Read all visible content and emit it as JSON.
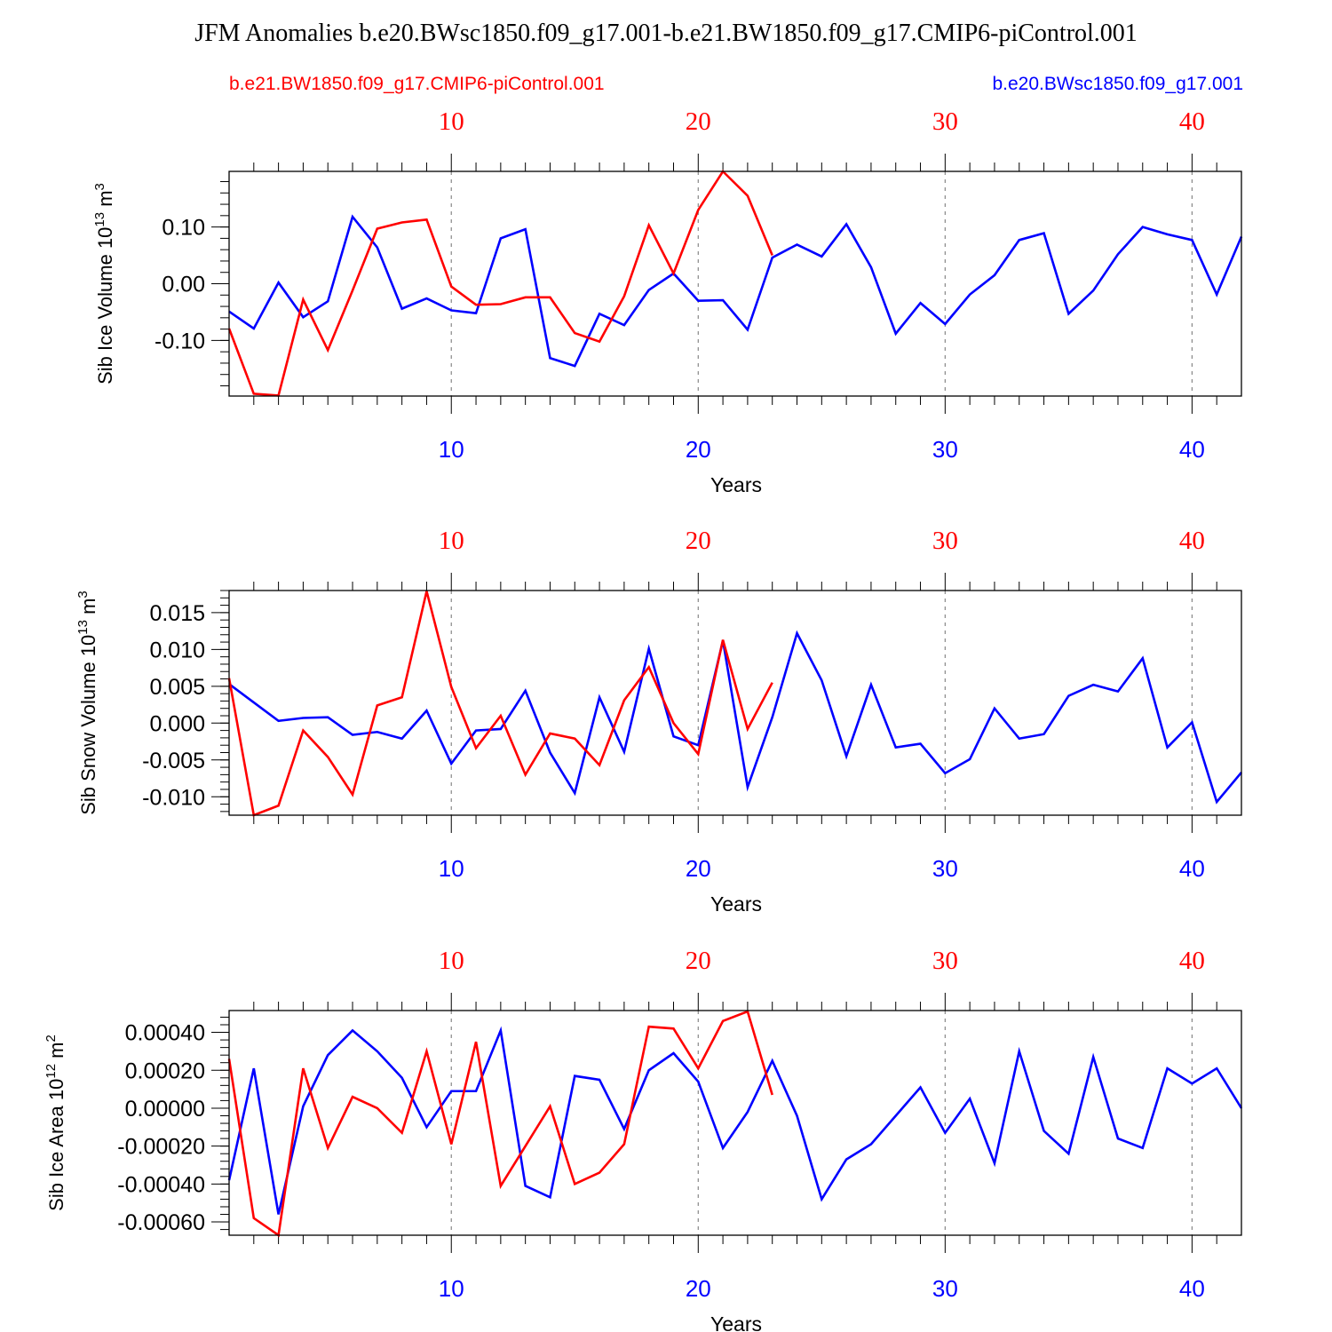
{
  "title": "JFM Anomalies b.e20.BWsc1850.f09_g17.001-b.e21.BW1850.f09_g17.CMIP6-piControl.001",
  "colors": {
    "red": "#ff0000",
    "blue": "#0000ff",
    "axis": "#000000",
    "grid": "#888888"
  },
  "legend": {
    "red_label": "b.e21.BW1850.f09_g17.CMIP6-piControl.001",
    "blue_label": "b.e20.BWsc1850.f09_g17.001"
  },
  "chart_data": [
    {
      "type": "line",
      "ylabel_main": "Sib Ice Volume 10",
      "ylabel_exp": "13",
      "ylabel_unit": " m",
      "ylabel_unit_exp": "3",
      "xlabel": "Years",
      "xlim": [
        1,
        42
      ],
      "ylim": [
        -0.198,
        0.198
      ],
      "xticks": [
        10,
        20,
        30,
        40
      ],
      "xtick_labels": [
        "10",
        "20",
        "30",
        "40"
      ],
      "yticks": [
        0.1,
        0.0,
        -0.1
      ],
      "ytick_labels": [
        "0.10",
        "0.00",
        "-0.10"
      ],
      "y_minor_step": 0.02,
      "series": [
        {
          "name": "b.e20.BWsc1850.f09_g17.001",
          "color": "blue",
          "x_start": 1,
          "values": [
            -0.049,
            -0.079,
            0.002,
            -0.059,
            -0.031,
            0.118,
            0.064,
            -0.044,
            -0.026,
            -0.047,
            -0.052,
            0.08,
            0.096,
            -0.131,
            -0.145,
            -0.053,
            -0.073,
            -0.011,
            0.018,
            -0.03,
            -0.029,
            -0.081,
            0.046,
            0.069,
            0.048,
            0.105,
            0.029,
            -0.088,
            -0.034,
            -0.071,
            -0.019,
            0.015,
            0.077,
            0.089,
            -0.053,
            -0.012,
            0.052,
            0.1,
            0.087,
            0.077,
            -0.019,
            0.083
          ]
        },
        {
          "name": "b.e21.BW1850.f09_g17.CMIP6-piControl.001",
          "color": "red",
          "x_start": 1,
          "values": [
            -0.079,
            -0.194,
            -0.197,
            -0.028,
            -0.117,
            -0.012,
            0.097,
            0.108,
            0.113,
            -0.005,
            -0.037,
            -0.036,
            -0.024,
            -0.024,
            -0.087,
            -0.102,
            -0.022,
            0.103,
            0.018,
            0.13,
            0.198,
            0.155,
            0.05
          ]
        }
      ]
    },
    {
      "type": "line",
      "ylabel_main": "Sib Snow Volume 10",
      "ylabel_exp": "13",
      "ylabel_unit": " m",
      "ylabel_unit_exp": "3",
      "xlabel": "Years",
      "xlim": [
        1,
        42
      ],
      "ylim": [
        -0.0125,
        0.018
      ],
      "xticks": [
        10,
        20,
        30,
        40
      ],
      "xtick_labels": [
        "10",
        "20",
        "30",
        "40"
      ],
      "yticks": [
        0.015,
        0.01,
        0.005,
        0.0,
        -0.005,
        -0.01
      ],
      "ytick_labels": [
        "0.015",
        "0.010",
        "0.005",
        "0.000",
        "-0.005",
        "-0.010"
      ],
      "y_minor_step": 0.001,
      "series": [
        {
          "name": "b.e20.BWsc1850.f09_g17.001",
          "color": "blue",
          "x_start": 1,
          "values": [
            0.0053,
            0.0028,
            0.0003,
            0.0007,
            0.0008,
            -0.0016,
            -0.0012,
            -0.0021,
            0.0017,
            -0.0055,
            -0.001,
            -0.0008,
            0.0044,
            -0.004,
            -0.0095,
            0.0035,
            -0.0039,
            0.0101,
            -0.0018,
            -0.003,
            0.0112,
            -0.0087,
            0.0008,
            0.0122,
            0.0058,
            -0.0045,
            0.0052,
            -0.0033,
            -0.0028,
            -0.0068,
            -0.0049,
            0.002,
            -0.0021,
            -0.0015,
            0.0037,
            0.0052,
            0.0043,
            0.0088,
            -0.0033,
            0.0001,
            -0.0107,
            -0.0067
          ]
        },
        {
          "name": "b.e21.BW1850.f09_g17.CMIP6-piControl.001",
          "color": "red",
          "x_start": 1,
          "values": [
            0.0061,
            -0.0125,
            -0.0112,
            -0.001,
            -0.0046,
            -0.0097,
            0.0024,
            0.0035,
            0.0179,
            0.0049,
            -0.0034,
            0.001,
            -0.007,
            -0.0014,
            -0.0021,
            -0.0057,
            0.0031,
            0.0076,
            0.0,
            -0.0042,
            0.0113,
            -0.0008,
            0.0055
          ]
        }
      ]
    },
    {
      "type": "line",
      "ylabel_main": "Sib Ice Area 10",
      "ylabel_exp": "12",
      "ylabel_unit": " m",
      "ylabel_unit_exp": "2",
      "xlabel": "Years",
      "xlim": [
        1,
        42
      ],
      "ylim": [
        -0.00067,
        0.000515
      ],
      "xticks": [
        10,
        20,
        30,
        40
      ],
      "xtick_labels": [
        "10",
        "20",
        "30",
        "40"
      ],
      "yticks": [
        0.0004,
        0.0002,
        0.0,
        -0.0002,
        -0.0004,
        -0.0006
      ],
      "ytick_labels": [
        "0.00040",
        "0.00020",
        "0.00000",
        "-0.00020",
        "-0.00040",
        "-0.00060"
      ],
      "y_minor_step": 4e-05,
      "series": [
        {
          "name": "b.e20.BWsc1850.f09_g17.001",
          "color": "blue",
          "x_start": 1,
          "values": [
            -0.00038,
            0.00021,
            -0.00056,
            1e-05,
            0.00028,
            0.00041,
            0.0003,
            0.00016,
            -0.0001,
            9e-05,
            9e-05,
            0.00041,
            -0.00041,
            -0.00047,
            0.00017,
            0.00015,
            -0.00011,
            0.0002,
            0.00029,
            0.00014,
            -0.00021,
            -2e-05,
            0.00025,
            -4e-05,
            -0.00048,
            -0.00027,
            -0.00019,
            -4e-05,
            0.00011,
            -0.00013,
            5e-05,
            -0.00029,
            0.0003,
            -0.00012,
            -0.00024,
            0.00027,
            -0.00016,
            -0.00021,
            0.00021,
            0.00013,
            0.00021,
            0.0
          ]
        },
        {
          "name": "b.e21.BW1850.f09_g17.CMIP6-piControl.001",
          "color": "red",
          "x_start": 1,
          "values": [
            0.00026,
            -0.00058,
            -0.00067,
            0.00021,
            -0.00021,
            6e-05,
            0.0,
            -0.00013,
            0.0003,
            -0.00019,
            0.00035,
            -0.00041,
            -0.0002,
            1e-05,
            -0.0004,
            -0.00034,
            -0.00019,
            0.00043,
            0.00042,
            0.00021,
            0.00046,
            0.00051,
            7e-05
          ]
        }
      ]
    }
  ]
}
